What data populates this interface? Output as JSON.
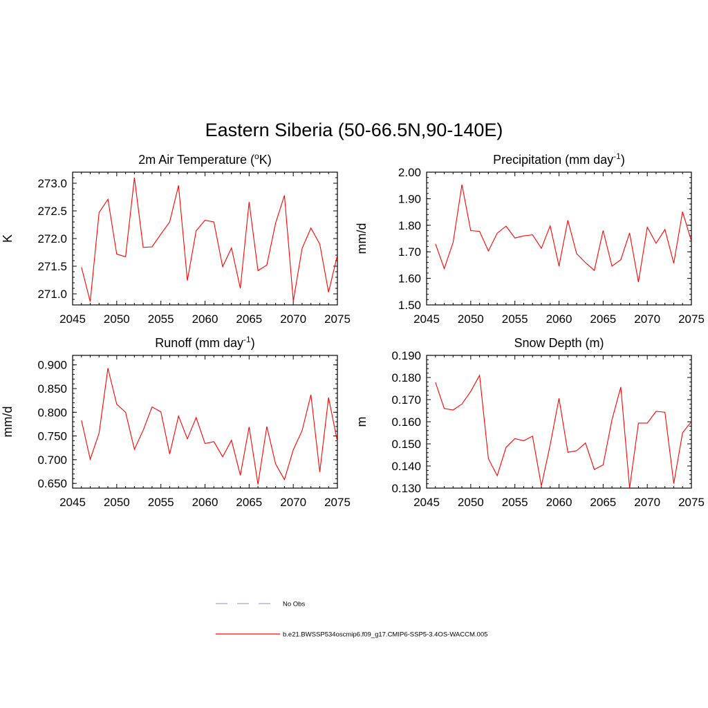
{
  "figure": {
    "title": "Eastern Siberia (50-66.5N,90-140E)"
  },
  "legend": {
    "entries": [
      {
        "label": "No Obs",
        "color": "#a0a0e6",
        "style": "dashed"
      },
      {
        "label": "b.e21.BWSSP534oscmip6.f09_g17.CMIP6-SSP5-3.4OS-WACCM.005",
        "color": "#ff0000",
        "style": "solid"
      }
    ]
  },
  "chart_data": [
    {
      "type": "line",
      "title_main": "2m Air Temperature (",
      "title_sup": "o",
      "title_end": "K)",
      "ylabel": "K",
      "xlim": [
        2045,
        2075
      ],
      "ylim": [
        270.8,
        273.2
      ],
      "xticks": [
        2045,
        2050,
        2055,
        2060,
        2065,
        2070,
        2075
      ],
      "yticks": [
        "271.0",
        "271.5",
        "272.0",
        "272.5",
        "273.0"
      ],
      "series": [
        {
          "color": "#ff0000",
          "x": [
            2046,
            2047,
            2048,
            2049,
            2050,
            2051,
            2052,
            2053,
            2054,
            2055,
            2056,
            2057,
            2058,
            2059,
            2060,
            2061,
            2062,
            2063,
            2064,
            2065,
            2066,
            2067,
            2068,
            2069,
            2070,
            2071,
            2072,
            2073,
            2074,
            2075
          ],
          "values": [
            271.48,
            270.86,
            272.47,
            272.71,
            271.72,
            271.67,
            273.1,
            271.84,
            271.85,
            272.08,
            272.3,
            272.96,
            271.24,
            272.14,
            272.33,
            272.3,
            271.49,
            271.83,
            271.1,
            272.66,
            271.42,
            271.52,
            272.28,
            272.78,
            270.87,
            271.82,
            272.19,
            271.9,
            271.03,
            271.7
          ]
        }
      ]
    },
    {
      "type": "line",
      "title_main": "Precipitation (mm day",
      "title_sup": "-1",
      "title_end": ")",
      "ylabel": "mm/d",
      "xlim": [
        2045,
        2075
      ],
      "ylim": [
        1.5,
        2.0
      ],
      "xticks": [
        2045,
        2050,
        2055,
        2060,
        2065,
        2070,
        2075
      ],
      "yticks": [
        "1.50",
        "1.60",
        "1.70",
        "1.80",
        "1.90",
        "2.00"
      ],
      "series": [
        {
          "color": "#ff0000",
          "x": [
            2046,
            2047,
            2048,
            2049,
            2050,
            2051,
            2052,
            2053,
            2054,
            2055,
            2056,
            2057,
            2058,
            2059,
            2060,
            2061,
            2062,
            2063,
            2064,
            2065,
            2066,
            2067,
            2068,
            2069,
            2070,
            2071,
            2072,
            2073,
            2074,
            2075
          ],
          "values": [
            1.73,
            1.637,
            1.735,
            1.953,
            1.78,
            1.777,
            1.703,
            1.77,
            1.797,
            1.752,
            1.76,
            1.764,
            1.713,
            1.798,
            1.646,
            1.819,
            1.693,
            1.659,
            1.63,
            1.78,
            1.646,
            1.67,
            1.771,
            1.586,
            1.793,
            1.732,
            1.784,
            1.657,
            1.851,
            1.74
          ]
        }
      ]
    },
    {
      "type": "line",
      "title_main": "Runoff (mm day",
      "title_sup": "-1",
      "title_end": ")",
      "ylabel": "mm/d",
      "xlim": [
        2045,
        2075
      ],
      "ylim": [
        0.64,
        0.92
      ],
      "xticks": [
        2045,
        2050,
        2055,
        2060,
        2065,
        2070,
        2075
      ],
      "yticks": [
        "0.650",
        "0.700",
        "0.750",
        "0.800",
        "0.850",
        "0.900"
      ],
      "series": [
        {
          "color": "#ff0000",
          "x": [
            2046,
            2047,
            2048,
            2049,
            2050,
            2051,
            2052,
            2053,
            2054,
            2055,
            2056,
            2057,
            2058,
            2059,
            2060,
            2061,
            2062,
            2063,
            2064,
            2065,
            2066,
            2067,
            2068,
            2069,
            2070,
            2071,
            2072,
            2073,
            2074,
            2075
          ],
          "values": [
            0.783,
            0.701,
            0.756,
            0.893,
            0.817,
            0.8,
            0.722,
            0.762,
            0.811,
            0.801,
            0.712,
            0.792,
            0.744,
            0.789,
            0.734,
            0.738,
            0.706,
            0.741,
            0.667,
            0.769,
            0.648,
            0.77,
            0.691,
            0.658,
            0.721,
            0.761,
            0.837,
            0.674,
            0.831,
            0.738
          ]
        }
      ]
    },
    {
      "type": "line",
      "title_main": "Snow Depth (m)",
      "title_sup": "",
      "title_end": "",
      "ylabel": "m",
      "xlim": [
        2045,
        2075
      ],
      "ylim": [
        0.13,
        0.19
      ],
      "xticks": [
        2045,
        2050,
        2055,
        2060,
        2065,
        2070,
        2075
      ],
      "yticks": [
        "0.130",
        "0.140",
        "0.150",
        "0.160",
        "0.170",
        "0.180",
        "0.190"
      ],
      "series": [
        {
          "color": "#ff0000",
          "x": [
            2046,
            2047,
            2048,
            2049,
            2050,
            2051,
            2052,
            2053,
            2054,
            2055,
            2056,
            2057,
            2058,
            2059,
            2060,
            2061,
            2062,
            2063,
            2064,
            2065,
            2066,
            2067,
            2068,
            2069,
            2070,
            2071,
            2072,
            2073,
            2074,
            2075
          ],
          "values": [
            0.1778,
            0.166,
            0.1653,
            0.168,
            0.1737,
            0.181,
            0.1433,
            0.1356,
            0.1484,
            0.1524,
            0.1514,
            0.1535,
            0.131,
            0.1495,
            0.1706,
            0.1462,
            0.1469,
            0.1504,
            0.1384,
            0.1405,
            0.1609,
            0.1757,
            0.13,
            0.1594,
            0.1594,
            0.1647,
            0.1643,
            0.1321,
            0.155,
            0.1601
          ]
        }
      ]
    }
  ]
}
